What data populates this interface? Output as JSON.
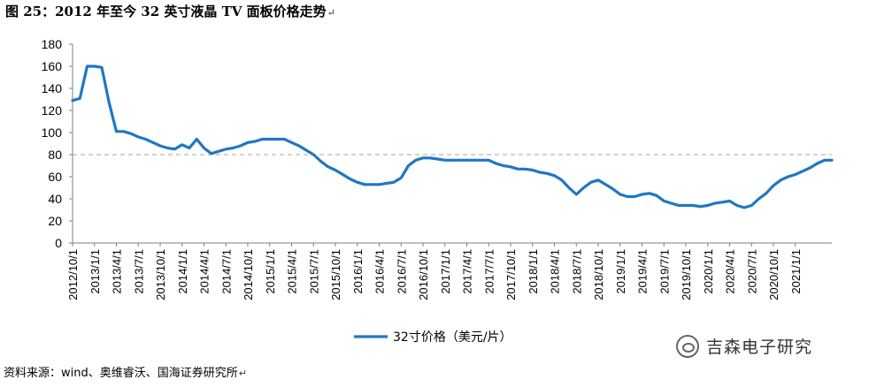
{
  "figure": {
    "title": "图 25：2012 年至今 32 英寸液晶 TV 面板价格走势",
    "para_mark": "↵"
  },
  "chart_data": {
    "type": "line",
    "title": "图 25：2012 年至今 32 英寸液晶 TV 面板价格走势",
    "xlabel": "",
    "ylabel": "",
    "ylim": [
      0,
      180
    ],
    "yticks": [
      0,
      20,
      40,
      60,
      80,
      100,
      120,
      140,
      160,
      180
    ],
    "x_tick_labels": [
      "2012/10/1",
      "2013/1/1",
      "2013/4/1",
      "2013/7/1",
      "2013/10/1",
      "2014/1/1",
      "2014/4/1",
      "2014/7/1",
      "2014/10/1",
      "2015/1/1",
      "2015/4/1",
      "2015/7/1",
      "2015/10/1",
      "2016/1/1",
      "2016/4/1",
      "2016/7/1",
      "2016/10/1",
      "2017/1/1",
      "2017/4/1",
      "2017/7/1",
      "2017/10/1",
      "2018/1/1",
      "2018/4/1",
      "2018/7/1",
      "2018/10/1",
      "2019/1/1",
      "2019/4/1",
      "2019/7/1",
      "2019/10/1",
      "2020/1/1",
      "2020/4/1",
      "2020/7/1",
      "2020/10/1",
      "2021/1/1"
    ],
    "reference_line": {
      "y": 80,
      "style": "dashed",
      "color": "#a6a6a6"
    },
    "grid": false,
    "legend_position": "bottom-center",
    "series": [
      {
        "name": "32寸价格（美元/片）",
        "color": "#1f77c4",
        "x_months": [
          0,
          1,
          2,
          3,
          4,
          5,
          6,
          7,
          8,
          9,
          10,
          11,
          12,
          13,
          14,
          15,
          16,
          17,
          18,
          19,
          20,
          21,
          22,
          23,
          24,
          25,
          26,
          27,
          28,
          29,
          30,
          31,
          32,
          33,
          34,
          35,
          36,
          37,
          38,
          39,
          40,
          41,
          42,
          43,
          44,
          45,
          46,
          47,
          48,
          49,
          50,
          51,
          52,
          53,
          54,
          55,
          56,
          57,
          58,
          59,
          60,
          61,
          62,
          63,
          64,
          65,
          66,
          67,
          68,
          69,
          70,
          71,
          72,
          73,
          74,
          75,
          76,
          77,
          78,
          79,
          80,
          81,
          82,
          83,
          84,
          85,
          86,
          87,
          88,
          89,
          90,
          91,
          92,
          93,
          94,
          95,
          96,
          97,
          98,
          99,
          100,
          101,
          102,
          103,
          104
        ],
        "values": [
          129,
          131,
          160,
          160,
          159,
          127,
          101,
          101,
          99,
          96,
          94,
          91,
          88,
          86,
          85,
          89,
          86,
          94,
          86,
          81,
          83,
          85,
          86,
          88,
          91,
          92,
          94,
          94,
          94,
          94,
          91,
          88,
          84,
          80,
          74,
          69,
          66,
          62,
          58,
          55,
          53,
          53,
          53,
          54,
          55,
          59,
          70,
          75,
          77,
          77,
          76,
          75,
          75,
          75,
          75,
          75,
          75,
          75,
          72,
          70,
          69,
          67,
          67,
          66,
          64,
          63,
          61,
          57,
          50,
          44,
          50,
          55,
          57,
          53,
          49,
          44,
          42,
          42,
          44,
          45,
          43,
          38,
          36,
          34,
          34,
          34,
          33,
          34,
          36,
          37,
          38,
          34,
          32,
          34,
          40,
          45,
          52,
          57,
          60,
          62,
          65,
          68,
          72,
          75,
          75
        ]
      }
    ]
  },
  "source": {
    "text": "资料来源：wind、奥维睿沃、国海证券研究所",
    "para_mark": "↵"
  },
  "watermark": {
    "text": "吉森电子研究",
    "icon": "wechat-icon"
  }
}
